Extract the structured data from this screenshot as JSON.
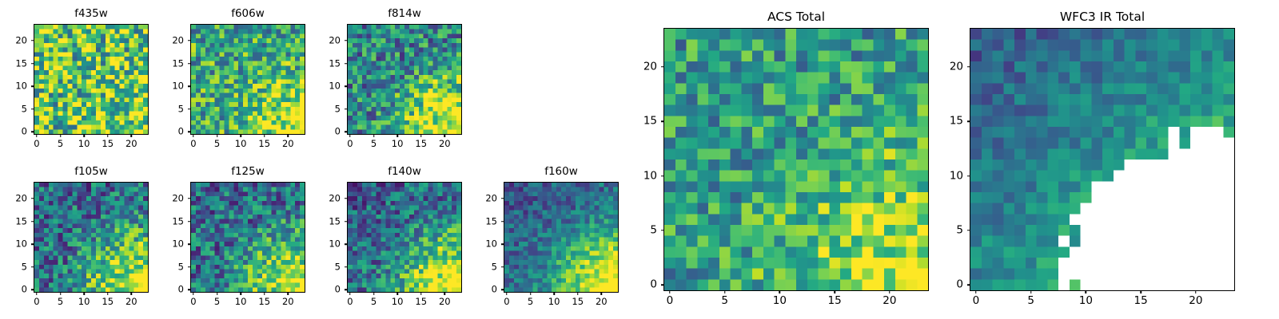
{
  "figure": {
    "background": "#ffffff",
    "description": "Grid of nine viridis heatmap cutouts: seven HST filter bands plus two stacked totals",
    "colormap_colors": [
      "#440154",
      "#3b528b",
      "#21918c",
      "#5ec962",
      "#fde725"
    ],
    "masked_color": "#ffffff"
  },
  "chart_data": [
    {
      "id": "f435w",
      "type": "heatmap",
      "title": "f435w",
      "xticks": [
        0,
        5,
        10,
        15,
        20
      ],
      "yticks": [
        0,
        5,
        10,
        15,
        20
      ],
      "xlim": [
        -0.5,
        23.5
      ],
      "ylim": [
        -0.5,
        23.5
      ],
      "grid_size": 24,
      "colormap": "viridis",
      "pattern": {
        "base": 0.74,
        "diag": 0.0,
        "corner_boost": 0.15,
        "noise": 0.42,
        "seed": 11
      },
      "note": "bright yellow-green speckled noise; values estimated, cells are stochastic"
    },
    {
      "id": "f606w",
      "type": "heatmap",
      "title": "f606w",
      "xticks": [
        0,
        5,
        10,
        15,
        20
      ],
      "yticks": [
        0,
        5,
        10,
        15,
        20
      ],
      "xlim": [
        -0.5,
        23.5
      ],
      "ylim": [
        -0.5,
        23.5
      ],
      "grid_size": 24,
      "colormap": "viridis",
      "pattern": {
        "base": 0.6,
        "diag": 0.0,
        "corner_boost": 0.4,
        "noise": 0.33,
        "seed": 22
      },
      "note": "mid-green noise with bright bottom-right corner"
    },
    {
      "id": "f814w",
      "type": "heatmap",
      "title": "f814w",
      "xticks": [
        0,
        5,
        10,
        15,
        20
      ],
      "yticks": [
        0,
        5,
        10,
        15,
        20
      ],
      "xlim": [
        -0.5,
        23.5
      ],
      "ylim": [
        -0.5,
        23.5
      ],
      "grid_size": 24,
      "colormap": "viridis",
      "pattern": {
        "base": 0.44,
        "diag": 0.05,
        "corner_boost": 0.6,
        "noise": 0.32,
        "seed": 33
      },
      "note": "teal noise, yellow bottom-right corner"
    },
    {
      "id": "f105w",
      "type": "heatmap",
      "title": "f105w",
      "xticks": [
        0,
        5,
        10,
        15,
        20
      ],
      "yticks": [
        0,
        5,
        10,
        15,
        20
      ],
      "xlim": [
        -0.5,
        23.5
      ],
      "ylim": [
        -0.5,
        23.5
      ],
      "grid_size": 24,
      "colormap": "viridis",
      "pattern": {
        "base": 0.33,
        "diag": 0.12,
        "corner_boost": 0.65,
        "noise": 0.3,
        "seed": 44
      },
      "note": "dark blue/teal noise, bright bottom-right corner"
    },
    {
      "id": "f125w",
      "type": "heatmap",
      "title": "f125w",
      "xticks": [
        0,
        5,
        10,
        15,
        20
      ],
      "yticks": [
        0,
        5,
        10,
        15,
        20
      ],
      "xlim": [
        -0.5,
        23.5
      ],
      "ylim": [
        -0.5,
        23.5
      ],
      "grid_size": 24,
      "colormap": "viridis",
      "pattern": {
        "base": 0.34,
        "diag": 0.1,
        "corner_boost": 0.62,
        "noise": 0.3,
        "seed": 55
      },
      "note": "dark blue/teal noise, bright bottom-right corner"
    },
    {
      "id": "f140w",
      "type": "heatmap",
      "title": "f140w",
      "xticks": [
        0,
        5,
        10,
        15,
        20
      ],
      "yticks": [
        0,
        5,
        10,
        15,
        20
      ],
      "xlim": [
        -0.5,
        23.5
      ],
      "ylim": [
        -0.5,
        23.5
      ],
      "grid_size": 24,
      "colormap": "viridis",
      "pattern": {
        "base": 0.31,
        "diag": 0.14,
        "corner_boost": 0.68,
        "noise": 0.27,
        "seed": 66
      },
      "note": "dark blue noise, bright bottom-right corner"
    },
    {
      "id": "f160w",
      "type": "heatmap",
      "title": "f160w",
      "xticks": [
        0,
        5,
        10,
        15,
        20
      ],
      "yticks": [
        0,
        5,
        10,
        15,
        20
      ],
      "xlim": [
        -0.5,
        23.5
      ],
      "ylim": [
        -0.5,
        23.5
      ],
      "grid_size": 24,
      "colormap": "viridis",
      "pattern": {
        "base": 0.28,
        "diag": 0.18,
        "corner_boost": 0.72,
        "noise": 0.2,
        "seed": 77
      },
      "note": "smooth dark-to-bright gradient toward bottom-right"
    },
    {
      "id": "acs-total",
      "type": "heatmap",
      "title": "ACS Total",
      "xticks": [
        0,
        5,
        10,
        15,
        20
      ],
      "yticks": [
        0,
        5,
        10,
        15,
        20
      ],
      "xlim": [
        -0.5,
        23.5
      ],
      "ylim": [
        -0.5,
        23.5
      ],
      "grid_size": 24,
      "colormap": "viridis",
      "pattern": {
        "base": 0.54,
        "diag": 0.04,
        "corner_boost": 0.4,
        "noise": 0.27,
        "seed": 88
      },
      "note": "green/teal noise, brighter bottom-right region"
    },
    {
      "id": "wfc3-ir-total",
      "type": "heatmap",
      "title": "WFC3 IR Total",
      "xticks": [
        0,
        5,
        10,
        15,
        20
      ],
      "yticks": [
        0,
        5,
        10,
        15,
        20
      ],
      "xlim": [
        -0.5,
        23.5
      ],
      "ylim": [
        -0.5,
        23.5
      ],
      "grid_size": 24,
      "colormap": "viridis",
      "pattern": {
        "base": 0.27,
        "diag": 0.42,
        "corner_boost": 0.35,
        "noise": 0.14,
        "seed": 99
      },
      "mask": {
        "shape": "quarter-ellipse-bottom-right",
        "rx": 0.66,
        "ry": 0.6,
        "jitter": 0.35,
        "color": "#ffffff"
      },
      "note": "gradient dark top-left to yellow bottom-right; white masked (NaN) region in bottom-right quadrant"
    }
  ]
}
